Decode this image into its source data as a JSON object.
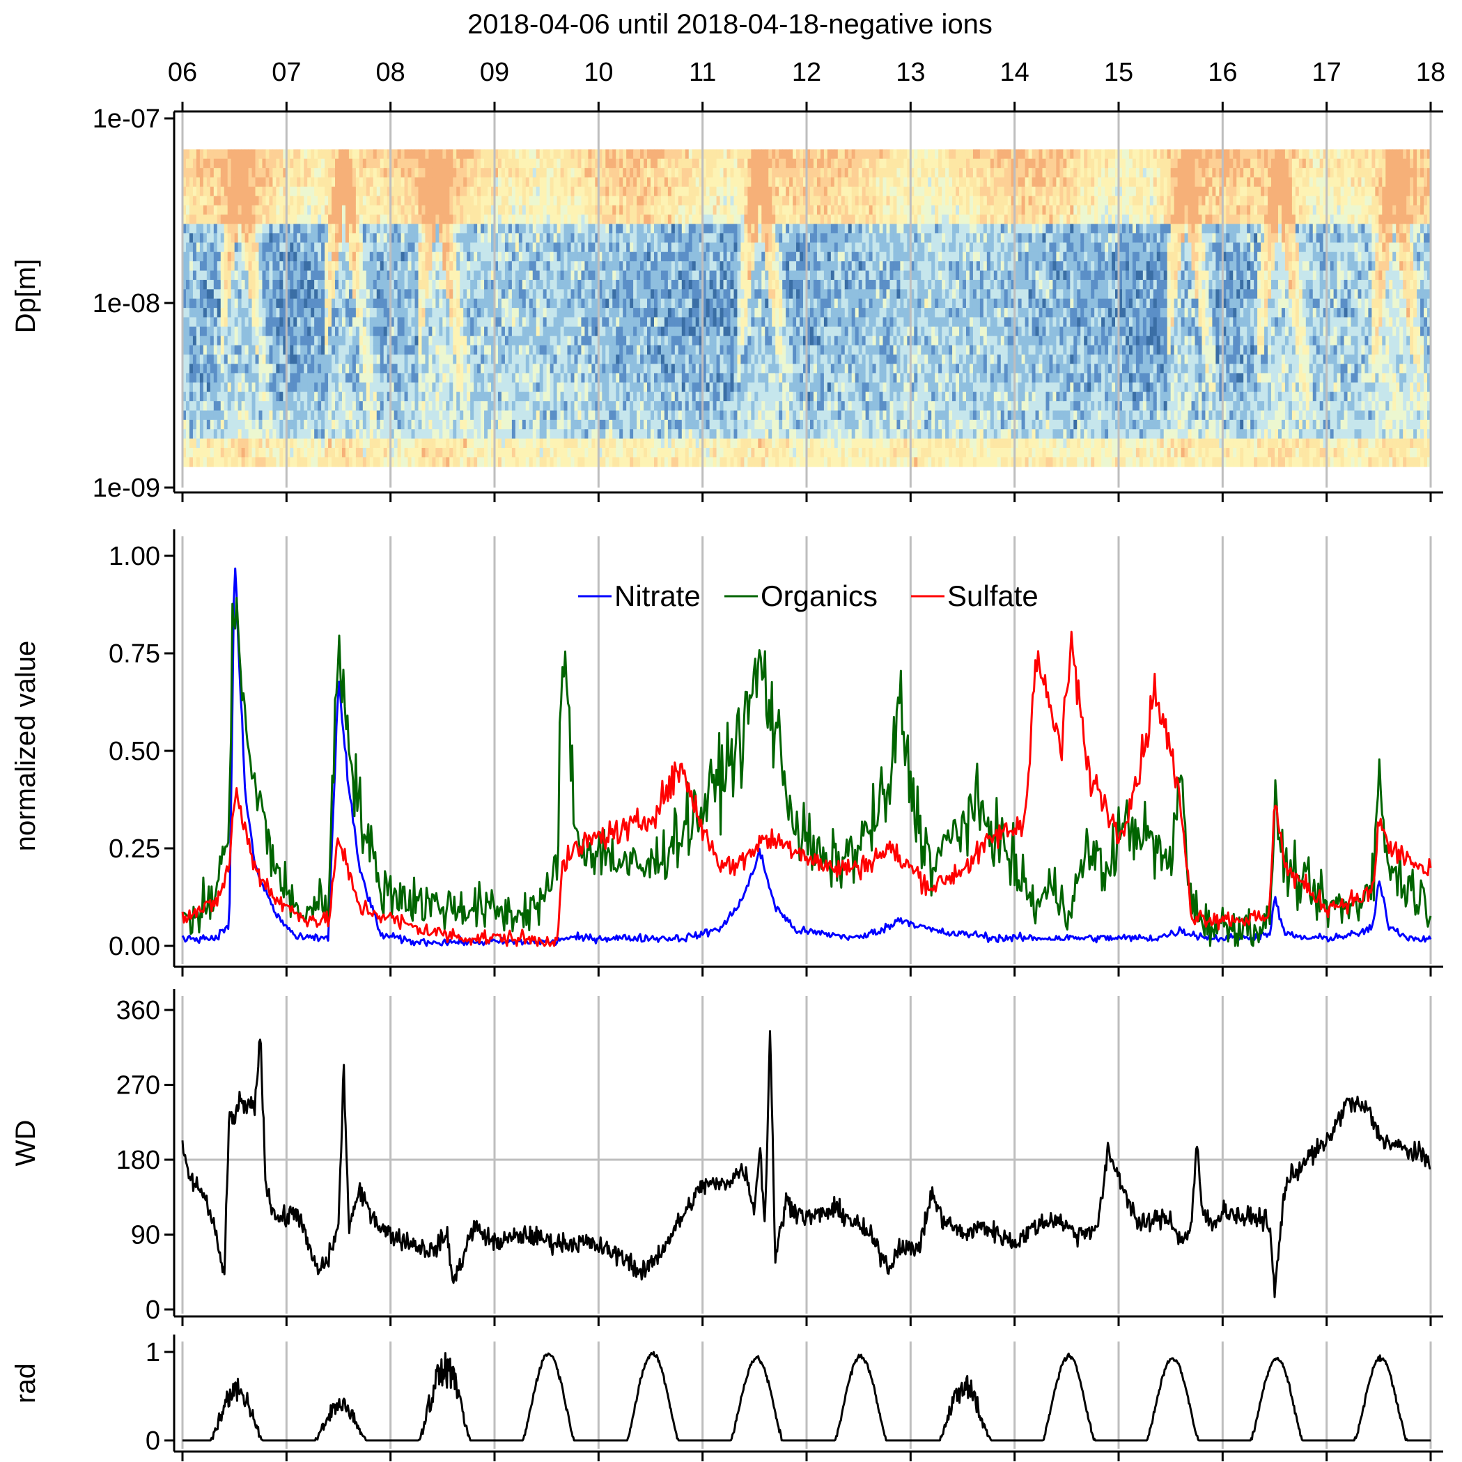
{
  "title": "2018-04-06 until 2018-04-18-negative ions",
  "x_tick_labels": [
    "06",
    "07",
    "08",
    "09",
    "10",
    "11",
    "12",
    "13",
    "14",
    "15",
    "16",
    "17",
    "18"
  ],
  "colors": {
    "nitrate": "#0000ff",
    "organics": "#006400",
    "sulfate": "#ff0000",
    "gridline": "#bebebe",
    "black": "#000000"
  },
  "chart_data": [
    {
      "id": "size-distribution",
      "type": "heatmap",
      "ylabel": "Dp[m]",
      "y_scale": "log",
      "ylim": [
        1e-09,
        1e-07
      ],
      "y_tick_labels": [
        "1e-07",
        "1e-08",
        "1e-09"
      ],
      "y_ticks": [
        1e-07,
        1e-08,
        1e-09
      ],
      "data_range_dp": [
        1.3e-09,
        6.8e-08
      ],
      "x_range_days": [
        6,
        18
      ],
      "colormap": [
        "#3a6ea5",
        "#5b8fc7",
        "#8fbfdf",
        "#c6e6ec",
        "#ecf7d0",
        "#fdf3b4",
        "#fde7a4",
        "#fdd095",
        "#f6b078"
      ],
      "growth_events": [
        6.5,
        7.5,
        8.4,
        11.5,
        15.6,
        16.5,
        17.6
      ],
      "grid": true
    },
    {
      "id": "composition",
      "type": "line",
      "ylabel": "normalized value",
      "ylim": [
        0,
        1
      ],
      "y_tick_labels": [
        "0.00",
        "0.25",
        "0.50",
        "0.75",
        "1.00"
      ],
      "y_ticks": [
        0,
        0.25,
        0.5,
        0.75,
        1
      ],
      "legend_position": "top-center",
      "x": [
        6.0,
        6.3,
        6.45,
        6.5,
        6.6,
        6.7,
        6.9,
        7.1,
        7.4,
        7.5,
        7.6,
        7.7,
        7.9,
        8.2,
        8.5,
        8.8,
        9.2,
        9.5,
        9.6,
        9.65,
        9.8,
        10.0,
        10.3,
        10.5,
        10.8,
        11.0,
        11.2,
        11.4,
        11.55,
        11.7,
        11.9,
        12.2,
        12.5,
        12.8,
        12.9,
        13.0,
        13.2,
        13.4,
        13.6,
        13.8,
        14.0,
        14.1,
        14.2,
        14.35,
        14.45,
        14.55,
        14.7,
        14.9,
        15.0,
        15.2,
        15.35,
        15.5,
        15.6,
        15.7,
        15.9,
        16.2,
        16.45,
        16.5,
        16.6,
        16.8,
        17.0,
        17.3,
        17.45,
        17.5,
        17.6,
        17.8,
        18.0
      ],
      "series": [
        {
          "name": "Nitrate",
          "values": [
            0.02,
            0.02,
            0.05,
            1.0,
            0.4,
            0.2,
            0.08,
            0.02,
            0.02,
            0.68,
            0.4,
            0.2,
            0.03,
            0.01,
            0.01,
            0.01,
            0.01,
            0.01,
            0.01,
            0.02,
            0.02,
            0.02,
            0.02,
            0.02,
            0.02,
            0.03,
            0.05,
            0.13,
            0.24,
            0.1,
            0.04,
            0.03,
            0.02,
            0.05,
            0.07,
            0.06,
            0.04,
            0.03,
            0.03,
            0.02,
            0.02,
            0.02,
            0.02,
            0.02,
            0.02,
            0.02,
            0.02,
            0.02,
            0.02,
            0.02,
            0.02,
            0.03,
            0.04,
            0.03,
            0.02,
            0.02,
            0.03,
            0.12,
            0.03,
            0.02,
            0.02,
            0.03,
            0.05,
            0.17,
            0.05,
            0.02,
            0.02
          ]
        },
        {
          "name": "Organics",
          "values": [
            0.05,
            0.12,
            0.3,
            1.0,
            0.55,
            0.4,
            0.2,
            0.08,
            0.12,
            0.77,
            0.55,
            0.35,
            0.15,
            0.12,
            0.1,
            0.1,
            0.08,
            0.12,
            0.2,
            0.77,
            0.25,
            0.25,
            0.2,
            0.2,
            0.3,
            0.35,
            0.45,
            0.55,
            0.73,
            0.55,
            0.3,
            0.2,
            0.25,
            0.4,
            0.63,
            0.4,
            0.2,
            0.28,
            0.35,
            0.3,
            0.2,
            0.15,
            0.1,
            0.15,
            0.12,
            0.1,
            0.25,
            0.18,
            0.3,
            0.3,
            0.25,
            0.2,
            0.45,
            0.1,
            0.05,
            0.05,
            0.05,
            0.37,
            0.2,
            0.15,
            0.1,
            0.1,
            0.2,
            0.42,
            0.2,
            0.15,
            0.1
          ]
        },
        {
          "name": "Sulfate",
          "values": [
            0.08,
            0.1,
            0.2,
            0.4,
            0.3,
            0.2,
            0.12,
            0.08,
            0.06,
            0.28,
            0.18,
            0.1,
            0.08,
            0.05,
            0.03,
            0.02,
            0.02,
            0.01,
            0.02,
            0.2,
            0.25,
            0.28,
            0.3,
            0.33,
            0.46,
            0.3,
            0.2,
            0.22,
            0.27,
            0.27,
            0.25,
            0.2,
            0.2,
            0.25,
            0.22,
            0.2,
            0.15,
            0.18,
            0.22,
            0.28,
            0.3,
            0.32,
            0.75,
            0.6,
            0.5,
            0.78,
            0.45,
            0.35,
            0.28,
            0.45,
            0.66,
            0.5,
            0.35,
            0.08,
            0.07,
            0.07,
            0.07,
            0.4,
            0.2,
            0.15,
            0.1,
            0.12,
            0.14,
            0.33,
            0.25,
            0.22,
            0.18
          ]
        }
      ],
      "grid": true
    },
    {
      "id": "wind-direction",
      "type": "line",
      "ylabel": "WD",
      "ylim": [
        0,
        360
      ],
      "y_tick_labels": [
        "0",
        "90",
        "180",
        "270",
        "360"
      ],
      "y_ticks": [
        0,
        90,
        180,
        270,
        360
      ],
      "reference_line": 180,
      "x": [
        6.0,
        6.05,
        6.2,
        6.3,
        6.4,
        6.45,
        6.5,
        6.55,
        6.6,
        6.7,
        6.75,
        6.8,
        6.9,
        7.0,
        7.1,
        7.2,
        7.3,
        7.4,
        7.5,
        7.55,
        7.6,
        7.7,
        7.8,
        7.9,
        8.0,
        8.2,
        8.4,
        8.55,
        8.6,
        8.8,
        9.0,
        9.3,
        9.6,
        9.9,
        10.1,
        10.3,
        10.4,
        10.6,
        10.8,
        11.0,
        11.2,
        11.4,
        11.5,
        11.55,
        11.6,
        11.65,
        11.7,
        11.8,
        12.0,
        12.3,
        12.6,
        12.8,
        12.9,
        13.0,
        13.1,
        13.2,
        13.3,
        13.5,
        13.7,
        14.0,
        14.2,
        14.4,
        14.6,
        14.8,
        14.9,
        15.0,
        15.2,
        15.4,
        15.5,
        15.6,
        15.7,
        15.75,
        15.8,
        15.9,
        16.0,
        16.2,
        16.4,
        16.45,
        16.5,
        16.6,
        16.8,
        17.0,
        17.2,
        17.4,
        17.5,
        17.6,
        17.8,
        18.0
      ],
      "series": [
        {
          "name": "",
          "values": [
            200,
            160,
            140,
            100,
            40,
            230,
            230,
            250,
            240,
            250,
            330,
            150,
            110,
            110,
            120,
            80,
            45,
            60,
            100,
            290,
            100,
            140,
            120,
            100,
            90,
            80,
            70,
            90,
            30,
            100,
            80,
            90,
            80,
            80,
            70,
            60,
            40,
            70,
            110,
            150,
            150,
            170,
            120,
            200,
            100,
            340,
            60,
            130,
            110,
            120,
            90,
            50,
            80,
            70,
            80,
            140,
            110,
            90,
            100,
            80,
            100,
            110,
            90,
            100,
            190,
            160,
            100,
            110,
            110,
            80,
            100,
            200,
            120,
            100,
            120,
            110,
            110,
            100,
            20,
            150,
            180,
            200,
            250,
            240,
            210,
            200,
            190,
            180
          ]
        }
      ],
      "grid": true
    },
    {
      "id": "radiation",
      "type": "line",
      "ylabel": "rad",
      "ylim": [
        0,
        1
      ],
      "y_tick_labels": [
        "0",
        "1"
      ],
      "y_ticks": [
        0,
        1
      ],
      "daily_peak": [
        0.72,
        0.5,
        1.0,
        0.98,
        0.98,
        0.93,
        0.95,
        0.75,
        0.95,
        0.93,
        0.93,
        0.93
      ],
      "noisy_days": [
        6,
        7,
        8,
        13
      ],
      "grid": true
    }
  ]
}
